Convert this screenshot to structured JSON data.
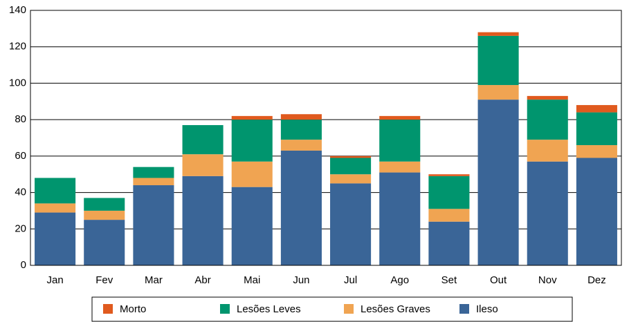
{
  "chart_data": {
    "type": "stacked_bar",
    "categories": [
      "Jan",
      "Fev",
      "Mar",
      "Abr",
      "Mai",
      "Jun",
      "Jul",
      "Ago",
      "Set",
      "Out",
      "Nov",
      "Dez"
    ],
    "series": [
      {
        "name": "Morto",
        "color": "#e05a1e",
        "values": [
          0,
          0,
          0,
          0,
          2,
          3,
          1,
          2,
          1,
          2,
          2,
          4
        ]
      },
      {
        "name": "Lesões Leves",
        "color": "#00956e",
        "values": [
          14,
          7,
          6,
          16,
          23,
          11,
          9,
          23,
          18,
          27,
          22,
          18
        ]
      },
      {
        "name": "Lesões Graves",
        "color": "#f0a452",
        "values": [
          5,
          5,
          4,
          12,
          14,
          6,
          5,
          6,
          7,
          8,
          12,
          7
        ]
      },
      {
        "name": "Ileso",
        "color": "#3a6597",
        "values": [
          29,
          25,
          44,
          49,
          43,
          63,
          45,
          51,
          24,
          91,
          57,
          59
        ]
      }
    ],
    "ylim": [
      0,
      140
    ],
    "yticks": [
      0,
      20,
      40,
      60,
      80,
      100,
      120,
      140
    ],
    "grid": true,
    "legend": "bottom"
  }
}
